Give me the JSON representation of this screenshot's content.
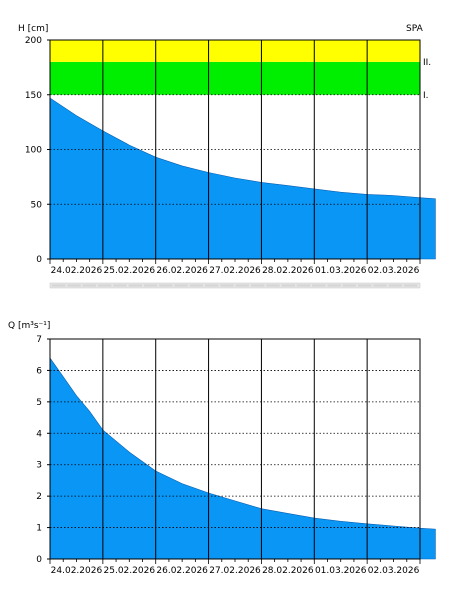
{
  "page": {
    "badge": "SPA"
  },
  "colors": {
    "fill": "#0a96f5",
    "band_yellow": "#ffff00",
    "band_green": "#00ee00",
    "grid": "#000000",
    "scrollbar": "#d9d9d9"
  },
  "chart_data": [
    {
      "type": "area",
      "ylabel": "H [cm]",
      "ylim": [
        0,
        200
      ],
      "yticks": [
        0,
        50,
        100,
        150,
        200
      ],
      "x_tick_labels": [
        "24.02.2026",
        "25.02.2026",
        "26.02.2026",
        "27.02.2026",
        "28.02.2026",
        "01.03.2026",
        "02.03.2026"
      ],
      "x_range_days": [
        0,
        7
      ],
      "bands": [
        {
          "label": "I.",
          "from": 150,
          "to": 180,
          "color": "#00ee00"
        },
        {
          "label": "II.",
          "from": 180,
          "to": 200,
          "color": "#ffff00"
        }
      ],
      "series": [
        {
          "x": [
            "23.02.2026 00:00",
            "23.02.2026 12:00",
            "24.02.2026 00:00",
            "24.02.2026 12:00",
            "25.02.2026 00:00",
            "25.02.2026 12:00",
            "26.02.2026 00:00",
            "26.02.2026 12:00",
            "27.02.2026 00:00",
            "27.02.2026 12:00",
            "28.02.2026 00:00",
            "28.02.2026 12:00",
            "01.03.2026 00:00",
            "01.03.2026 12:00",
            "02.03.2026 00:00",
            "02.03.2026 07:00"
          ],
          "values": [
            147,
            131,
            117,
            104,
            93,
            85,
            79,
            74,
            70,
            67,
            64,
            61,
            59,
            58,
            56,
            55
          ]
        }
      ],
      "grid": true
    },
    {
      "type": "area",
      "ylabel": "Q [m³s⁻¹]",
      "ylim": [
        0,
        7
      ],
      "yticks": [
        0,
        1,
        2,
        3,
        4,
        5,
        6,
        7
      ],
      "x_tick_labels": [
        "24.02.2026",
        "25.02.2026",
        "26.02.2026",
        "27.02.2026",
        "28.02.2026",
        "01.03.2026",
        "02.03.2026"
      ],
      "x_range_days": [
        0,
        7
      ],
      "series": [
        {
          "x": [
            "23.02.2026 00:00",
            "23.02.2026 06:00",
            "23.02.2026 12:00",
            "23.02.2026 18:00",
            "24.02.2026 00:00",
            "24.02.2026 12:00",
            "25.02.2026 00:00",
            "25.02.2026 12:00",
            "26.02.2026 00:00",
            "26.02.2026 12:00",
            "27.02.2026 00:00",
            "27.02.2026 12:00",
            "28.02.2026 00:00",
            "28.02.2026 12:00",
            "01.03.2026 00:00",
            "01.03.2026 12:00",
            "02.03.2026 00:00",
            "02.03.2026 07:00"
          ],
          "values": [
            6.4,
            5.8,
            5.2,
            4.7,
            4.1,
            3.4,
            2.8,
            2.4,
            2.1,
            1.85,
            1.6,
            1.45,
            1.3,
            1.2,
            1.12,
            1.05,
            0.98,
            0.95
          ]
        }
      ],
      "grid": true
    }
  ]
}
